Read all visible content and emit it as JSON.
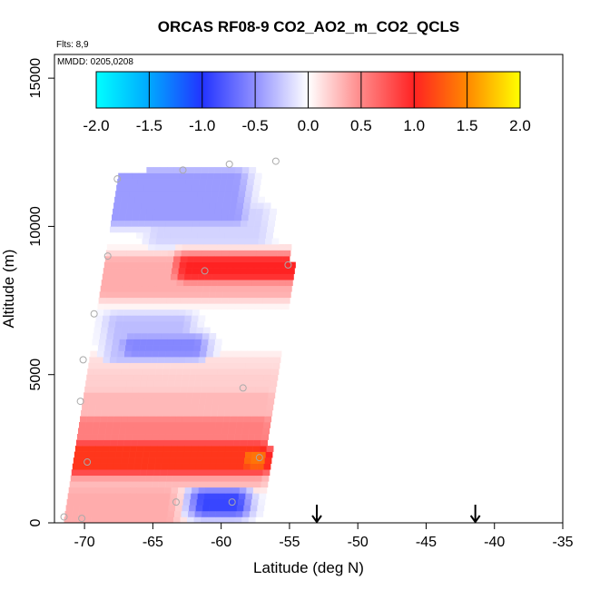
{
  "chart_data": {
    "type": "heatmap",
    "title": "ORCAS RF08-9 CO2_AO2_m_CO2_QCLS",
    "flights_note": "Flts: 8,9",
    "date_note": "MMDD: 0205,0208",
    "xlabel": "Latitude (deg N)",
    "ylabel": "Altitude (m)",
    "xlim": [
      -72.2,
      -35
    ],
    "ylim": [
      0,
      15800
    ],
    "x_ticks": [
      -70,
      -65,
      -60,
      -55,
      -50,
      -45,
      -40,
      -35
    ],
    "x_tick_labels": [
      "-70",
      "-65",
      "-60",
      "-55",
      "-50",
      "-45",
      "-40",
      "-35"
    ],
    "y_ticks": [
      0,
      5000,
      10000,
      15000
    ],
    "y_tick_labels": [
      "0",
      "5000",
      "10000",
      "15000"
    ],
    "colorbar": {
      "min": -2.0,
      "max": 2.0,
      "ticks": [
        -2.0,
        -1.5,
        -1.0,
        -0.5,
        0.0,
        0.5,
        1.0,
        1.5,
        2.0
      ],
      "tick_labels": [
        "-2.0",
        "-1.5",
        "-1.0",
        "-0.5",
        "0.0",
        "0.5",
        "1.0",
        "1.5",
        "2.0"
      ],
      "color_stops": [
        {
          "value": -2.0,
          "color": "#00ffff"
        },
        {
          "value": -1.5,
          "color": "#00a8ff"
        },
        {
          "value": -1.0,
          "color": "#2233ff"
        },
        {
          "value": -0.5,
          "color": "#9090ff"
        },
        {
          "value": 0.0,
          "color": "#ffffff"
        },
        {
          "value": 0.5,
          "color": "#ff8888"
        },
        {
          "value": 1.0,
          "color": "#ff2222"
        },
        {
          "value": 1.5,
          "color": "#ff8800"
        },
        {
          "value": 2.0,
          "color": "#ffff00"
        }
      ]
    },
    "grid": false,
    "arrow_markers_lat": [
      -53.0,
      -41.4
    ],
    "sample_points": [
      {
        "lat": -71.5,
        "alt": 200
      },
      {
        "lat": -70.2,
        "alt": 150
      },
      {
        "lat": -69.8,
        "alt": 2050
      },
      {
        "lat": -70.3,
        "alt": 4100
      },
      {
        "lat": -70.1,
        "alt": 5500
      },
      {
        "lat": -69.3,
        "alt": 7050
      },
      {
        "lat": -68.3,
        "alt": 9000
      },
      {
        "lat": -67.6,
        "alt": 11600
      },
      {
        "lat": -62.8,
        "alt": 11900
      },
      {
        "lat": -59.4,
        "alt": 12100
      },
      {
        "lat": -56.0,
        "alt": 12200
      },
      {
        "lat": -61.2,
        "alt": 8500
      },
      {
        "lat": -58.4,
        "alt": 4550
      },
      {
        "lat": -55.1,
        "alt": 8700
      },
      {
        "lat": -57.2,
        "alt": 2200
      },
      {
        "lat": -63.3,
        "alt": 700
      },
      {
        "lat": -59.2,
        "alt": 700
      }
    ],
    "field_features": [
      {
        "kind": "band",
        "lat_start": -71.3,
        "lat_end": -57.4,
        "alt_start": 1500,
        "alt_end": 1700,
        "value": 0.4
      },
      {
        "kind": "band",
        "lat_start": -71.0,
        "lat_end": -57.2,
        "alt_start": 1900,
        "alt_end": 2500,
        "value": 1.1
      },
      {
        "kind": "band",
        "lat_start": -57.8,
        "lat_end": -57.2,
        "alt_start": 2000,
        "alt_end": 2300,
        "value": 1.4
      },
      {
        "kind": "band",
        "lat_start": -70.8,
        "lat_end": -57.0,
        "alt_start": 2500,
        "alt_end": 3400,
        "value": 0.55
      },
      {
        "kind": "band",
        "lat_start": -70.5,
        "lat_end": -56.7,
        "alt_start": 3400,
        "alt_end": 4300,
        "value": 0.3
      },
      {
        "kind": "band",
        "lat_start": -70.3,
        "lat_end": -56.2,
        "alt_start": 4300,
        "alt_end": 5000,
        "value": 0.2
      },
      {
        "kind": "band",
        "lat_start": -70.0,
        "lat_end": -56.0,
        "alt_start": 5000,
        "alt_end": 5400,
        "value": 0.15
      },
      {
        "kind": "band",
        "lat_start": -67.5,
        "lat_end": -63.0,
        "alt_start": 5600,
        "alt_end": 6800,
        "value": -0.3
      },
      {
        "kind": "band",
        "lat_start": -66.5,
        "lat_end": -62.0,
        "alt_start": 5800,
        "alt_end": 6100,
        "value": -0.55
      },
      {
        "kind": "band",
        "lat_start": -68.5,
        "lat_end": -55.0,
        "alt_start": 7800,
        "alt_end": 8800,
        "value": 0.35
      },
      {
        "kind": "band",
        "lat_start": -62.5,
        "lat_end": -54.5,
        "alt_start": 8400,
        "alt_end": 8800,
        "value": 1.0
      },
      {
        "kind": "band",
        "lat_start": -68.0,
        "lat_end": -59.0,
        "alt_start": 10300,
        "alt_end": 11700,
        "value": -0.45
      },
      {
        "kind": "band",
        "lat_start": -64.5,
        "lat_end": -57.5,
        "alt_start": 9600,
        "alt_end": 10500,
        "value": -0.2
      },
      {
        "kind": "band",
        "lat_start": -71.3,
        "lat_end": -64.0,
        "alt_start": 0,
        "alt_end": 1000,
        "value": 0.35
      },
      {
        "kind": "band",
        "lat_start": -61.2,
        "lat_end": -59.0,
        "alt_start": 500,
        "alt_end": 850,
        "value": -0.9
      }
    ]
  }
}
